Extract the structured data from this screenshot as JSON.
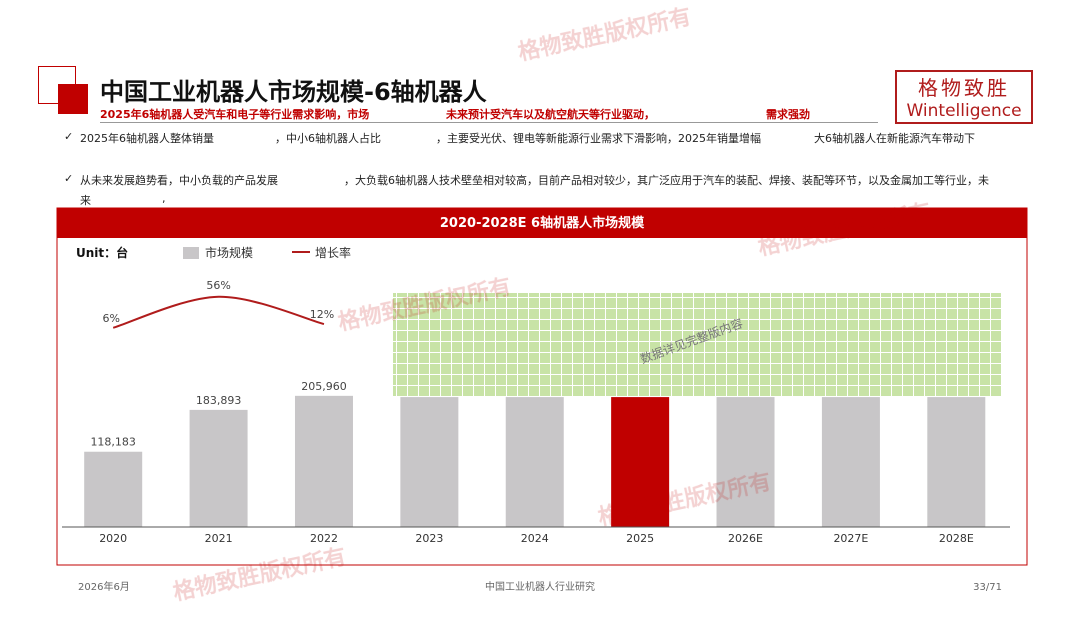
{
  "header": {
    "title": "中国工业机器人市场规模-6轴机器人",
    "subtitle": [
      "2025年6轴机器人受汽车和电子等行业需求影响，市场",
      "未来预计受汽车以及航空航天等行业驱动，",
      "需求强劲"
    ]
  },
  "logo": {
    "cn": "格物致胜",
    "en": "Wintelligence"
  },
  "watermark": "格物致胜版权所有",
  "bullets": [
    [
      "2025年6轴机器人整体销量",
      "，中小6轴机器人占比",
      "，主要受光伏、锂电等新能源行业需求下滑影响，2025年销量增幅",
      "大6轴机器人在新能源汽车带动下"
    ],
    [
      "从未来发展趋势看，中小负载的产品发展",
      "，大负载6轴机器人技术壁垒相对较高，目前产品相对较少，其广泛应用于汽车的装配、焊接、装配等环节，以及金属加工等行业，未",
      "来",
      ","
    ]
  ],
  "chart_data": {
    "type": "bar-line",
    "title": "2020-2028E 6轴机器人市场规模",
    "unit": "Unit：台",
    "overlay": "数据详见完整版内容",
    "categories": [
      "2020",
      "2021",
      "2022",
      "2023",
      "2024",
      "2025",
      "2026E",
      "2027E",
      "2028E"
    ],
    "ylim": [
      0,
      380000
    ],
    "y2lim": [
      -315,
      75
    ],
    "series": [
      {
        "name": "市场规模",
        "type": "bar",
        "color": "#c8c6c8",
        "colors": [
          "#c8c6c8",
          "#c8c6c8",
          "#c8c6c8",
          "#c8c6c8",
          "#c8c6c8",
          "#c00000",
          "#c8c6c8",
          "#c8c6c8",
          "#c8c6c8"
        ],
        "values": [
          118183,
          183893,
          205960,
          204000,
          204000,
          204000,
          204000,
          204000,
          204000
        ],
        "value_labels": [
          "118,183",
          "183,893",
          "205,960",
          null,
          null,
          null,
          null,
          null,
          null
        ]
      },
      {
        "name": "增长率",
        "type": "line",
        "axis": "y2",
        "color": "#b01c1c",
        "values": [
          6,
          56,
          12,
          null,
          null,
          null,
          null,
          null,
          null
        ],
        "value_labels": [
          "6%",
          "56%",
          "12%",
          null,
          null,
          null,
          null,
          null,
          null
        ]
      }
    ]
  },
  "footer": {
    "date": "2026年6月",
    "center": "中国工业机器人行业研究",
    "page": "33/71"
  }
}
